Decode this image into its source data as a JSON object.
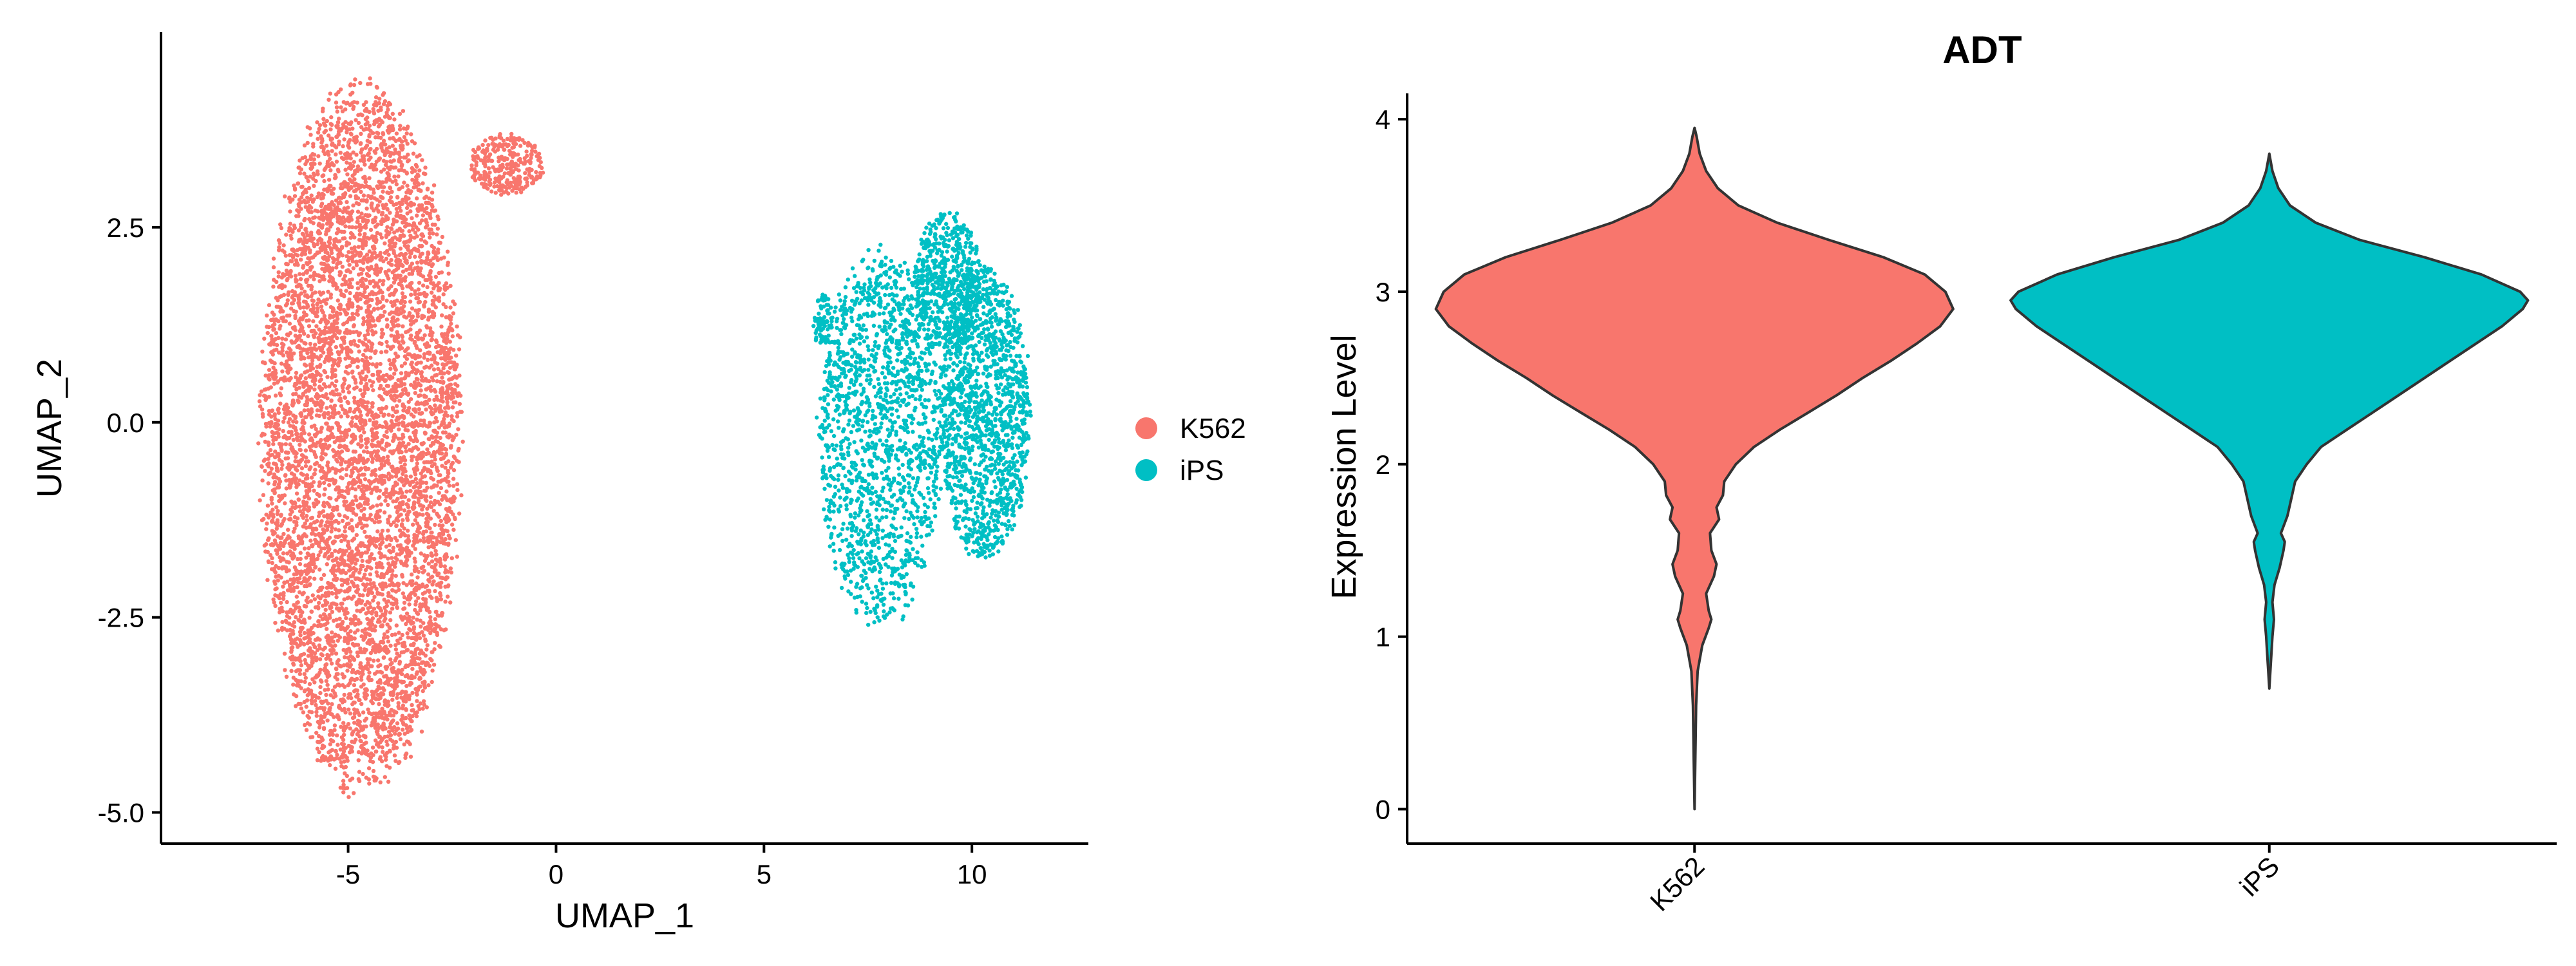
{
  "chart_data": [
    {
      "type": "scatter",
      "xlabel": "UMAP_1",
      "ylabel": "UMAP_2",
      "xlim": [
        -9.5,
        12.8
      ],
      "ylim": [
        -5.4,
        5.0
      ],
      "xticks": [
        -5,
        0,
        5,
        10
      ],
      "xtick_labels": [
        "-5",
        "0",
        "5",
        "10"
      ],
      "yticks": [
        -5.0,
        -2.5,
        0.0,
        2.5
      ],
      "ytick_labels": [
        "-5.0",
        "-2.5",
        "0.0",
        "2.5"
      ],
      "grid": false,
      "legend_position": "right",
      "series": [
        {
          "name": "K562",
          "color": "#F8766D",
          "clusters": [
            {
              "center_x": -4.7,
              "center_y": -0.2,
              "spread_x": 2.4,
              "spread_y": 4.5,
              "n": 6500
            },
            {
              "center_x": -1.2,
              "center_y": 3.3,
              "spread_x": 0.9,
              "spread_y": 0.4,
              "n": 300
            }
          ]
        },
        {
          "name": "iPS",
          "color": "#00BFC4",
          "clusters": [
            {
              "center_x": 7.8,
              "center_y": -0.2,
              "spread_x": 1.5,
              "spread_y": 2.4,
              "n": 1500
            },
            {
              "center_x": 10.3,
              "center_y": 0.1,
              "spread_x": 1.1,
              "spread_y": 1.9,
              "n": 1400
            },
            {
              "center_x": 9.4,
              "center_y": 1.8,
              "spread_x": 0.8,
              "spread_y": 0.9,
              "n": 600
            },
            {
              "center_x": 6.4,
              "center_y": 1.3,
              "spread_x": 0.25,
              "spread_y": 0.35,
              "n": 80
            }
          ]
        }
      ]
    },
    {
      "type": "violin",
      "title": "ADT",
      "xlabel": "",
      "ylabel": "Expression Level",
      "ylim": [
        -0.2,
        4.15
      ],
      "yticks": [
        0,
        1,
        2,
        3,
        4
      ],
      "ytick_labels": [
        "0",
        "1",
        "2",
        "3",
        "4"
      ],
      "categories": [
        "K562",
        "iPS"
      ],
      "grid": false,
      "series": [
        {
          "name": "K562",
          "color": "#F8766D",
          "min": 0.0,
          "max": 3.95,
          "profile": [
            [
              0.0,
              0.0
            ],
            [
              0.3,
              0.003
            ],
            [
              0.6,
              0.006
            ],
            [
              0.8,
              0.012
            ],
            [
              0.95,
              0.03
            ],
            [
              1.05,
              0.055
            ],
            [
              1.1,
              0.065
            ],
            [
              1.15,
              0.055
            ],
            [
              1.25,
              0.045
            ],
            [
              1.35,
              0.075
            ],
            [
              1.42,
              0.085
            ],
            [
              1.5,
              0.065
            ],
            [
              1.6,
              0.06
            ],
            [
              1.68,
              0.095
            ],
            [
              1.75,
              0.085
            ],
            [
              1.82,
              0.11
            ],
            [
              1.9,
              0.115
            ],
            [
              2.0,
              0.16
            ],
            [
              2.1,
              0.23
            ],
            [
              2.2,
              0.33
            ],
            [
              2.3,
              0.44
            ],
            [
              2.4,
              0.55
            ],
            [
              2.5,
              0.65
            ],
            [
              2.6,
              0.76
            ],
            [
              2.7,
              0.86
            ],
            [
              2.8,
              0.95
            ],
            [
              2.9,
              1.0
            ],
            [
              3.0,
              0.97
            ],
            [
              3.1,
              0.89
            ],
            [
              3.2,
              0.73
            ],
            [
              3.3,
              0.52
            ],
            [
              3.4,
              0.32
            ],
            [
              3.5,
              0.17
            ],
            [
              3.6,
              0.09
            ],
            [
              3.7,
              0.045
            ],
            [
              3.8,
              0.02
            ],
            [
              3.9,
              0.008
            ],
            [
              3.95,
              0.0
            ]
          ]
        },
        {
          "name": "iPS",
          "color": "#00BFC4",
          "min": 0.7,
          "max": 3.8,
          "profile": [
            [
              0.7,
              0.0
            ],
            [
              0.85,
              0.006
            ],
            [
              1.0,
              0.012
            ],
            [
              1.1,
              0.018
            ],
            [
              1.2,
              0.012
            ],
            [
              1.3,
              0.02
            ],
            [
              1.4,
              0.04
            ],
            [
              1.5,
              0.055
            ],
            [
              1.55,
              0.06
            ],
            [
              1.6,
              0.045
            ],
            [
              1.7,
              0.07
            ],
            [
              1.8,
              0.085
            ],
            [
              1.9,
              0.1
            ],
            [
              2.0,
              0.145
            ],
            [
              2.1,
              0.2
            ],
            [
              2.2,
              0.3
            ],
            [
              2.3,
              0.4
            ],
            [
              2.4,
              0.5
            ],
            [
              2.5,
              0.6
            ],
            [
              2.6,
              0.7
            ],
            [
              2.7,
              0.8
            ],
            [
              2.8,
              0.9
            ],
            [
              2.9,
              0.98
            ],
            [
              2.95,
              1.0
            ],
            [
              3.0,
              0.97
            ],
            [
              3.1,
              0.82
            ],
            [
              3.2,
              0.6
            ],
            [
              3.3,
              0.35
            ],
            [
              3.4,
              0.18
            ],
            [
              3.5,
              0.08
            ],
            [
              3.6,
              0.035
            ],
            [
              3.7,
              0.012
            ],
            [
              3.8,
              0.0
            ]
          ]
        }
      ]
    }
  ]
}
